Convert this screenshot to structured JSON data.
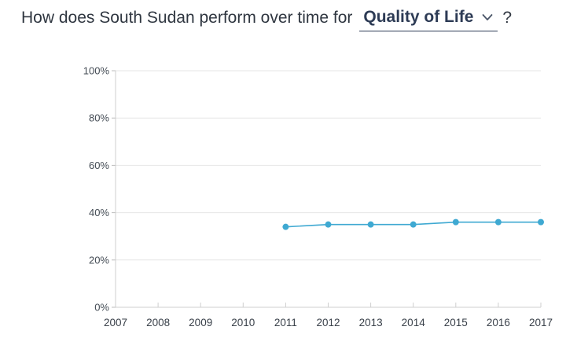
{
  "header": {
    "question_prefix": "How does South Sudan perform over time for",
    "metric_selected": "Quality of Life",
    "question_suffix": "?",
    "dropdown_icon": "chevron-down-icon"
  },
  "colors": {
    "series": "#3fa9d2",
    "text": "#2f3640",
    "grid": "#e6e6e6",
    "select": "#2d3b55"
  },
  "chart_data": {
    "type": "line",
    "title": "",
    "xlabel": "",
    "ylabel": "",
    "x": [
      "2007",
      "2008",
      "2009",
      "2010",
      "2011",
      "2012",
      "2013",
      "2014",
      "2015",
      "2016",
      "2017"
    ],
    "y_ticks": [
      "0%",
      "20%",
      "40%",
      "60%",
      "80%",
      "100%"
    ],
    "ylim": [
      0,
      100
    ],
    "grid": true,
    "series": [
      {
        "values": [
          null,
          null,
          null,
          null,
          34,
          35,
          35,
          35,
          36,
          36,
          36
        ]
      }
    ]
  }
}
